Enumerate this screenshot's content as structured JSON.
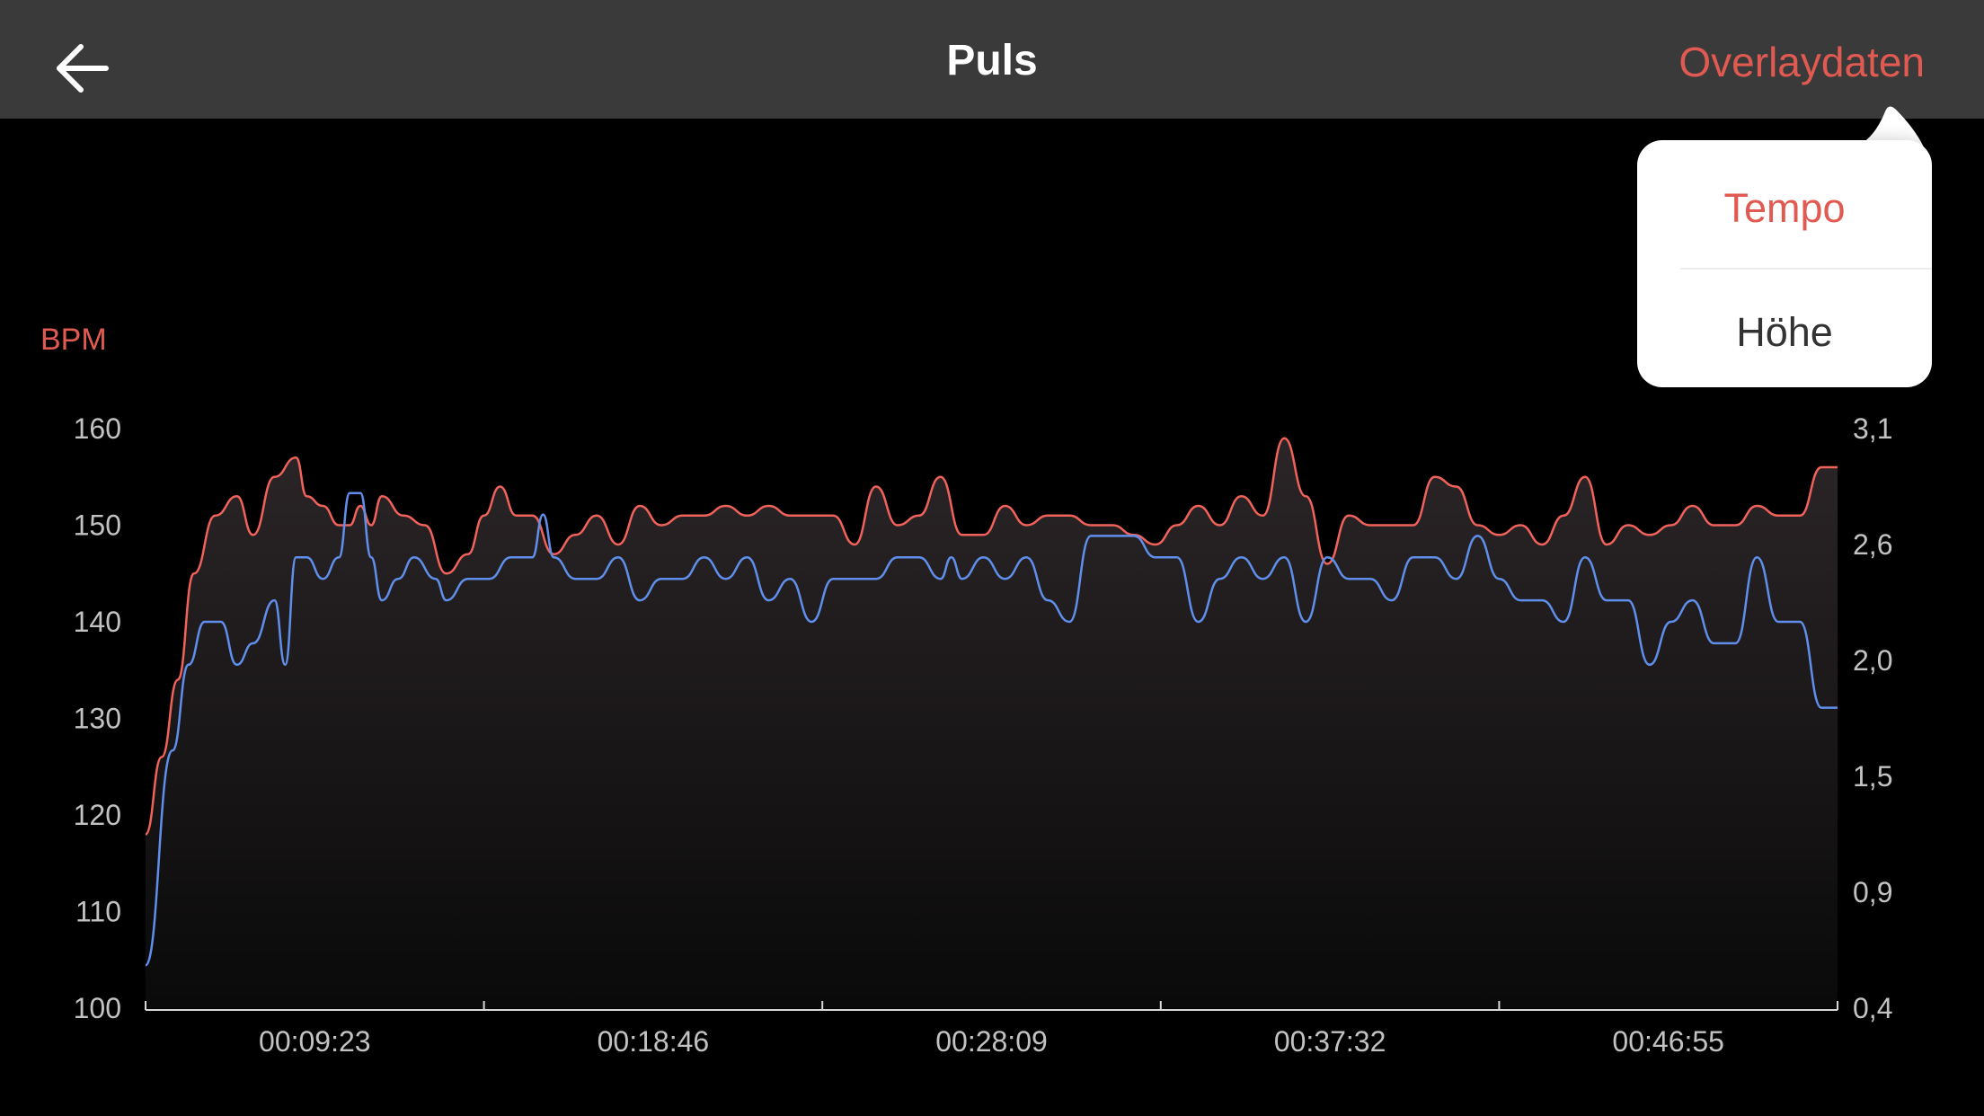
{
  "header": {
    "title": "Puls",
    "overlay_label": "Overlaydaten"
  },
  "overlay_menu": {
    "items": [
      {
        "label": "Tempo",
        "selected": true
      },
      {
        "label": "Höhe",
        "selected": false
      }
    ]
  },
  "colors": {
    "accent": "#e05a52",
    "heart_rate_line": "#f0625a",
    "pace_line": "#5f8fea",
    "header_bg": "#3a3a3a",
    "background": "#000000"
  },
  "chart_data": {
    "type": "line",
    "ylabel_left": "BPM",
    "ylabel_right": "",
    "y_left_ticks": [
      "160",
      "150",
      "140",
      "130",
      "120",
      "110",
      "100"
    ],
    "y_right_ticks": [
      "3,1",
      "2,6",
      "2,0",
      "1,5",
      "0,9",
      "0,4"
    ],
    "x_ticks": [
      "00:09:23",
      "00:18:46",
      "00:28:09",
      "00:37:32",
      "00:46:55"
    ],
    "ylim_left": [
      100,
      160
    ],
    "ylim_right": [
      0.4,
      3.1
    ],
    "x_duration_seconds": 3150,
    "grid": false,
    "series": [
      {
        "axis": "left",
        "color": "#f0625a",
        "x": [
          0,
          30,
          60,
          90,
          130,
          170,
          200,
          240,
          280,
          300,
          330,
          360,
          380,
          400,
          420,
          440,
          480,
          520,
          560,
          600,
          630,
          660,
          690,
          720,
          760,
          800,
          840,
          880,
          920,
          960,
          1000,
          1040,
          1080,
          1120,
          1160,
          1200,
          1240,
          1280,
          1320,
          1360,
          1400,
          1440,
          1480,
          1520,
          1560,
          1600,
          1640,
          1680,
          1720,
          1760,
          1800,
          1840,
          1880,
          1920,
          1960,
          2000,
          2040,
          2080,
          2120,
          2160,
          2200,
          2240,
          2280,
          2320,
          2360,
          2400,
          2440,
          2480,
          2520,
          2560,
          2600,
          2640,
          2680,
          2720,
          2760,
          2800,
          2840,
          2880,
          2920,
          2960,
          3000,
          3040,
          3080,
          3120,
          3150
        ],
        "values": [
          118,
          126,
          134,
          145,
          151,
          153,
          149,
          155,
          157,
          153,
          152,
          150,
          150,
          152,
          150,
          153,
          151,
          150,
          145,
          147,
          151,
          154,
          151,
          151,
          147,
          149,
          151,
          148,
          152,
          150,
          151,
          151,
          152,
          151,
          152,
          151,
          151,
          151,
          148,
          154,
          150,
          151,
          155,
          149,
          149,
          152,
          150,
          151,
          151,
          150,
          150,
          149,
          148,
          150,
          152,
          150,
          153,
          151,
          159,
          153,
          146,
          151,
          150,
          150,
          150,
          155,
          154,
          150,
          149,
          150,
          148,
          151,
          155,
          148,
          150,
          149,
          150,
          152,
          150,
          150,
          152,
          151,
          151,
          156,
          156
        ]
      },
      {
        "axis": "right",
        "color": "#5f8fea",
        "x": [
          0,
          50,
          80,
          110,
          140,
          170,
          200,
          240,
          260,
          280,
          300,
          330,
          360,
          380,
          400,
          420,
          440,
          470,
          500,
          540,
          560,
          600,
          640,
          680,
          700,
          720,
          740,
          760,
          800,
          840,
          880,
          920,
          960,
          1000,
          1040,
          1080,
          1120,
          1160,
          1200,
          1240,
          1280,
          1320,
          1360,
          1400,
          1440,
          1480,
          1500,
          1520,
          1560,
          1600,
          1640,
          1680,
          1720,
          1760,
          1800,
          1840,
          1880,
          1920,
          1960,
          2000,
          2040,
          2080,
          2120,
          2160,
          2200,
          2240,
          2280,
          2320,
          2360,
          2400,
          2440,
          2480,
          2520,
          2560,
          2600,
          2640,
          2680,
          2720,
          2760,
          2800,
          2840,
          2880,
          2920,
          2960,
          3000,
          3040,
          3080,
          3120,
          3150
        ],
        "values": [
          0.6,
          1.6,
          2.0,
          2.2,
          2.2,
          2.0,
          2.1,
          2.3,
          2.0,
          2.5,
          2.5,
          2.4,
          2.5,
          2.8,
          2.8,
          2.5,
          2.3,
          2.4,
          2.5,
          2.4,
          2.3,
          2.4,
          2.4,
          2.5,
          2.5,
          2.5,
          2.7,
          2.5,
          2.4,
          2.4,
          2.5,
          2.3,
          2.4,
          2.4,
          2.5,
          2.4,
          2.5,
          2.3,
          2.4,
          2.2,
          2.4,
          2.4,
          2.4,
          2.5,
          2.5,
          2.4,
          2.5,
          2.4,
          2.5,
          2.4,
          2.5,
          2.3,
          2.2,
          2.6,
          2.6,
          2.6,
          2.5,
          2.5,
          2.2,
          2.4,
          2.5,
          2.4,
          2.5,
          2.2,
          2.5,
          2.4,
          2.4,
          2.3,
          2.5,
          2.5,
          2.4,
          2.6,
          2.4,
          2.3,
          2.3,
          2.2,
          2.5,
          2.3,
          2.3,
          2.0,
          2.2,
          2.3,
          2.1,
          2.1,
          2.5,
          2.2,
          2.2,
          1.8,
          1.8
        ]
      }
    ]
  }
}
